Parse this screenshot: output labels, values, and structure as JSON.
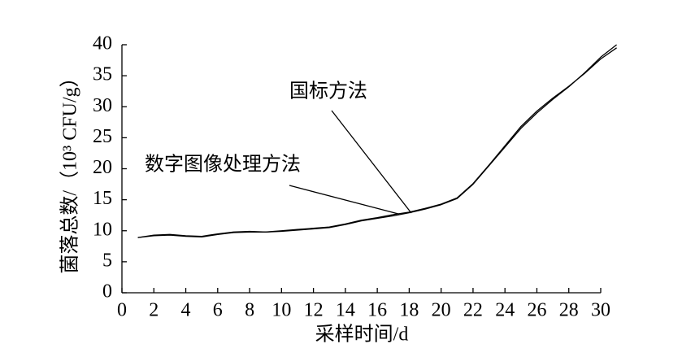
{
  "chart_data": {
    "type": "line",
    "x_label": "采样时间/d",
    "y_label": "菌落总数/（10³ CFU/g）",
    "x": [
      1,
      2,
      3,
      4,
      5,
      6,
      7,
      8,
      9,
      10,
      11,
      12,
      13,
      14,
      15,
      16,
      17,
      18,
      19,
      20,
      21,
      22,
      23,
      24,
      25,
      26,
      27,
      28,
      29,
      30,
      31
    ],
    "series": [
      {
        "name": "国标方法",
        "color": "#000000",
        "values": [
          8.9,
          9.2,
          9.3,
          9.1,
          9.0,
          9.4,
          9.7,
          9.8,
          9.8,
          9.9,
          10.1,
          10.3,
          10.5,
          11.0,
          11.6,
          12.0,
          12.4,
          12.9,
          13.5,
          14.2,
          15.2,
          17.5,
          20.5,
          23.5,
          26.5,
          29.0,
          31.2,
          33.2,
          35.5,
          38.0,
          40.0
        ]
      },
      {
        "name": "数字图像处理方法",
        "color": "#000000",
        "values": [
          8.9,
          9.3,
          9.4,
          9.2,
          9.1,
          9.5,
          9.8,
          9.9,
          9.8,
          10.0,
          10.2,
          10.4,
          10.6,
          11.1,
          11.7,
          12.1,
          12.6,
          13.0,
          13.6,
          14.3,
          15.3,
          17.6,
          20.6,
          23.7,
          26.8,
          29.3,
          31.4,
          33.3,
          35.4,
          37.7,
          39.5
        ]
      }
    ],
    "xlim": [
      0,
      30
    ],
    "ylim": [
      0,
      40
    ],
    "xticks": [
      0,
      2,
      4,
      6,
      8,
      10,
      12,
      14,
      16,
      18,
      20,
      22,
      24,
      26,
      28,
      30
    ],
    "yticks": [
      0,
      5,
      10,
      15,
      20,
      25,
      30,
      35,
      40
    ],
    "grid": false
  }
}
